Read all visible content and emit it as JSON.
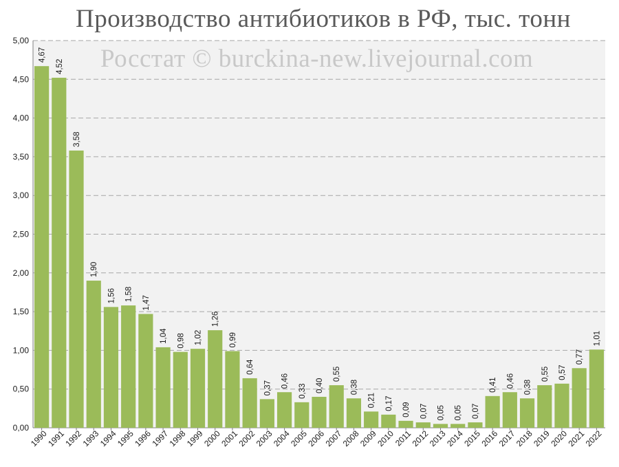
{
  "chart_data": {
    "type": "bar",
    "title": "Производство антибиотиков в РФ, тыс. тонн",
    "watermark": "Росстат © burckina-new.livejournal.com",
    "xlabel": "",
    "ylabel": "",
    "ylim": [
      0,
      5
    ],
    "y_ticks": [
      "0,00",
      "0,50",
      "1,00",
      "1,50",
      "2,00",
      "2,50",
      "3,00",
      "3,50",
      "4,00",
      "4,50",
      "5,00"
    ],
    "grid": true,
    "categories": [
      "1990",
      "1991",
      "1992",
      "1993",
      "1994",
      "1995",
      "1996",
      "1997",
      "1998",
      "1999",
      "2000",
      "2001",
      "2002",
      "2003",
      "2004",
      "2005",
      "2006",
      "2007",
      "2008",
      "2009",
      "2010",
      "2011",
      "2012",
      "2013",
      "2014",
      "2015",
      "2016",
      "2017",
      "2018",
      "2019",
      "2020",
      "2021",
      "2022"
    ],
    "values": [
      4.67,
      4.52,
      3.58,
      1.9,
      1.56,
      1.58,
      1.47,
      1.04,
      0.98,
      1.02,
      1.26,
      0.99,
      0.64,
      0.37,
      0.46,
      0.33,
      0.4,
      0.55,
      0.38,
      0.21,
      0.17,
      0.09,
      0.07,
      0.05,
      0.05,
      0.07,
      0.41,
      0.46,
      0.38,
      0.55,
      0.57,
      0.77,
      1.01
    ],
    "data_labels": [
      "4,67",
      "4,52",
      "3,58",
      "1,90",
      "1,56",
      "1,58",
      "1,47",
      "1,04",
      "0,98",
      "1,02",
      "1,26",
      "0,99",
      "0,64",
      "0,37",
      "0,46",
      "0,33",
      "0,40",
      "0,55",
      "0,38",
      "0,21",
      "0,17",
      "0,09",
      "0,07",
      "0,05",
      "0,05",
      "0,07",
      "0,41",
      "0,46",
      "0,38",
      "0,55",
      "0,57",
      "0,77",
      "1,01"
    ],
    "colors": {
      "bar": "#9bbb59",
      "plot_bg": "#f2f2f2",
      "grid": "#a6a6a6",
      "axis": "#808080",
      "text": "#1a1a1a"
    }
  }
}
